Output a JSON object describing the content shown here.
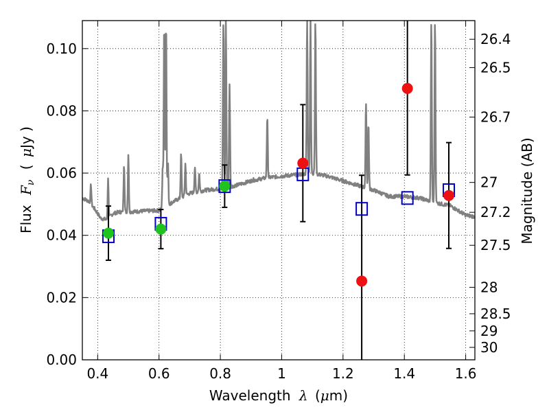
{
  "chart_data": {
    "type": "scatter",
    "title": "",
    "xlabel_text": "Wavelength",
    "xlabel_symbol": "λ",
    "xlabel_unit_open": "(",
    "xlabel_unit_mu": "μ",
    "xlabel_unit_rest": "m)",
    "ylabel_text": "Flux",
    "ylabel_symbol": "F",
    "ylabel_symbol_sub": "ν",
    "ylabel_unit_open": "(",
    "ylabel_unit_mu": "μ",
    "ylabel_unit_rest": "Jy )",
    "y2label": "Magnitude (AB)",
    "xlim": [
      0.35,
      1.63
    ],
    "ylim": [
      0.0,
      0.109
    ],
    "xticks": [
      {
        "value": 0.4,
        "label": "0.4"
      },
      {
        "value": 0.6,
        "label": "0.6"
      },
      {
        "value": 0.8,
        "label": "0.8"
      },
      {
        "value": 1.0,
        "label": "1"
      },
      {
        "value": 1.2,
        "label": "1.2"
      },
      {
        "value": 1.4,
        "label": "1.4"
      },
      {
        "value": 1.6,
        "label": "1.6"
      }
    ],
    "yticks": [
      {
        "value": 0.0,
        "label": "0.00"
      },
      {
        "value": 0.02,
        "label": "0.02"
      },
      {
        "value": 0.04,
        "label": "0.04"
      },
      {
        "value": 0.06,
        "label": "0.06"
      },
      {
        "value": 0.08,
        "label": "0.08"
      },
      {
        "value": 0.1,
        "label": "0.10"
      }
    ],
    "y2ticks": [
      {
        "flux": 0.103,
        "label": "26.4"
      },
      {
        "flux": 0.0939,
        "label": "26.5"
      },
      {
        "flux": 0.078,
        "label": "26.7"
      },
      {
        "flux": 0.057,
        "label": "27"
      },
      {
        "flux": 0.0474,
        "label": "27.2"
      },
      {
        "flux": 0.0368,
        "label": "27.5"
      },
      {
        "flux": 0.0233,
        "label": "28"
      },
      {
        "flux": 0.0148,
        "label": "28.5"
      },
      {
        "flux": 0.0093,
        "label": "29"
      },
      {
        "flux": 0.004,
        "label": "30"
      }
    ],
    "grid": true,
    "colors": {
      "spectrum": "#808080",
      "green_points": "#1fc21f",
      "red_points": "#ee1111",
      "model_boxes": "#0000cc",
      "errorbars": "#000000"
    },
    "spectrum": {
      "continuum": [
        [
          0.35,
          0.052
        ],
        [
          0.37,
          0.051
        ],
        [
          0.39,
          0.0485
        ],
        [
          0.41,
          0.0455
        ],
        [
          0.43,
          0.045
        ],
        [
          0.45,
          0.047
        ],
        [
          0.47,
          0.0475
        ],
        [
          0.5,
          0.0475
        ],
        [
          0.55,
          0.0478
        ],
        [
          0.6,
          0.048
        ],
        [
          0.65,
          0.051
        ],
        [
          0.7,
          0.0535
        ],
        [
          0.75,
          0.0545
        ],
        [
          0.8,
          0.055
        ],
        [
          0.85,
          0.056
        ],
        [
          0.9,
          0.0575
        ],
        [
          0.95,
          0.0585
        ],
        [
          1.0,
          0.059
        ],
        [
          1.05,
          0.0595
        ],
        [
          1.1,
          0.06
        ],
        [
          1.15,
          0.059
        ],
        [
          1.2,
          0.0575
        ],
        [
          1.25,
          0.056
        ],
        [
          1.3,
          0.0545
        ],
        [
          1.35,
          0.0525
        ],
        [
          1.4,
          0.0525
        ],
        [
          1.45,
          0.052
        ],
        [
          1.5,
          0.0505
        ],
        [
          1.55,
          0.0495
        ],
        [
          1.6,
          0.0465
        ],
        [
          1.63,
          0.046
        ]
      ],
      "lines": [
        [
          0.378,
          0.056
        ],
        [
          0.434,
          0.058
        ],
        [
          0.486,
          0.063
        ],
        [
          0.5,
          0.066
        ],
        [
          0.612,
          0.062
        ],
        [
          0.617,
          0.109
        ],
        [
          0.623,
          0.109
        ],
        [
          0.629,
          0.064
        ],
        [
          0.672,
          0.066
        ],
        [
          0.686,
          0.063
        ],
        [
          0.717,
          0.062
        ],
        [
          0.731,
          0.06
        ],
        [
          0.81,
          0.109
        ],
        [
          0.818,
          0.109
        ],
        [
          0.83,
          0.089
        ],
        [
          0.906,
          0.058
        ],
        [
          0.953,
          0.078
        ],
        [
          1.083,
          0.109
        ],
        [
          1.094,
          0.109
        ],
        [
          1.11,
          0.109
        ],
        [
          1.275,
          0.083
        ],
        [
          1.283,
          0.076
        ],
        [
          1.488,
          0.109
        ],
        [
          1.5,
          0.109
        ]
      ]
    },
    "series": [
      {
        "marker": "circle",
        "color": "#1fc21f",
        "points": [
          {
            "x": 0.435,
            "y": 0.0407,
            "err": 0.0087
          },
          {
            "x": 0.606,
            "y": 0.042,
            "err": 0.0063
          },
          {
            "x": 0.814,
            "y": 0.0558,
            "err": 0.0068
          }
        ]
      },
      {
        "marker": "circle",
        "color": "#ee1111",
        "points": [
          {
            "x": 1.069,
            "y": 0.0632,
            "err": 0.0188
          },
          {
            "x": 1.261,
            "y": 0.0253,
            "err": 0.034
          },
          {
            "x": 1.41,
            "y": 0.0872,
            "err": 0.0278
          },
          {
            "x": 1.545,
            "y": 0.0528,
            "err": 0.017
          }
        ]
      },
      {
        "marker": "open-square",
        "color": "#0000cc",
        "points": [
          {
            "x": 0.435,
            "y": 0.0397
          },
          {
            "x": 0.606,
            "y": 0.0437
          },
          {
            "x": 0.814,
            "y": 0.0558
          },
          {
            "x": 1.069,
            "y": 0.0596
          },
          {
            "x": 1.261,
            "y": 0.0485
          },
          {
            "x": 1.41,
            "y": 0.052
          },
          {
            "x": 1.545,
            "y": 0.0545
          }
        ]
      }
    ]
  }
}
